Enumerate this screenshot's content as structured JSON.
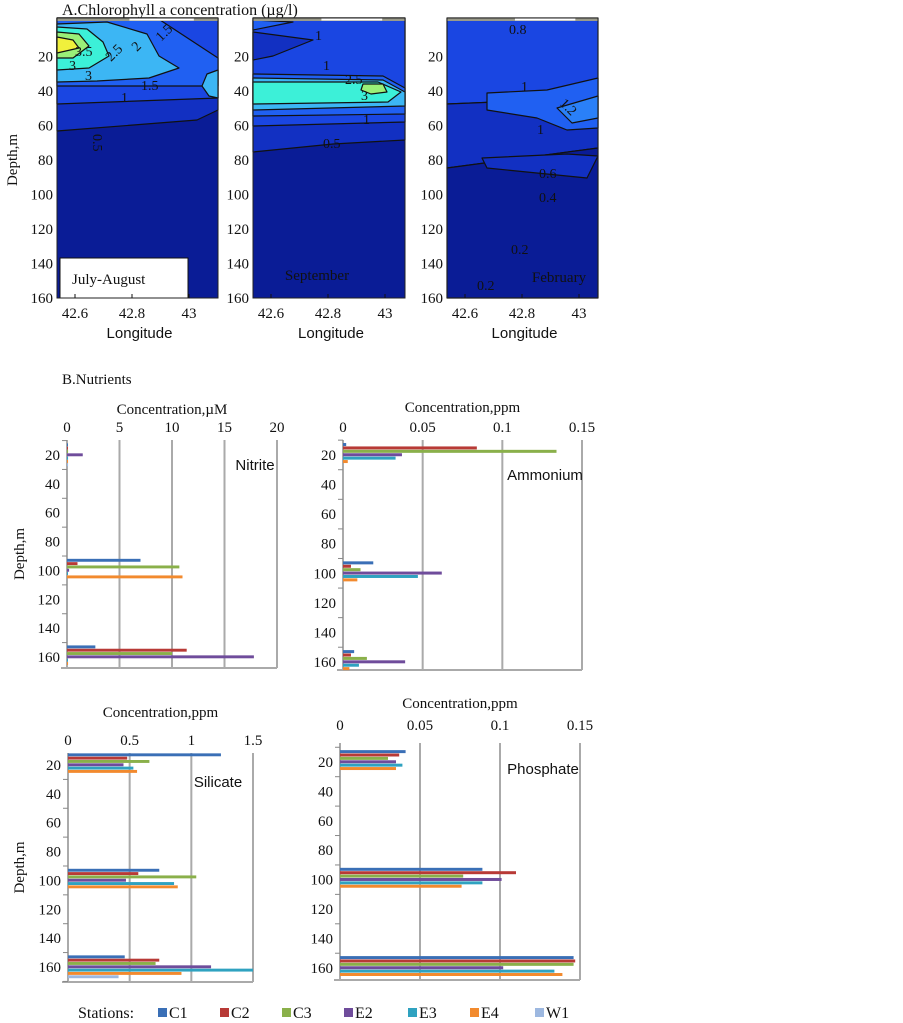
{
  "section_a_title": "A.Chlorophyll a concentration (µg/l)",
  "section_b_title": "B.Nutrients",
  "chart_data": [
    {
      "type": "heatmap",
      "id": "july-august",
      "panel_label": "July-August",
      "xlabel": "Longitude",
      "ylabel": "Depth,m",
      "xticks": [
        "42.6",
        "42.8",
        "43"
      ],
      "yticks": [
        "20",
        "40",
        "60",
        "80",
        "100",
        "120",
        "140",
        "160"
      ],
      "ylim": [
        0,
        160
      ],
      "xlim": [
        42.53,
        43.11
      ],
      "contour_labels": [
        "3.5",
        "3",
        "3",
        "2.5",
        "2",
        "1.5",
        "1.5",
        "1",
        "0.5"
      ]
    },
    {
      "type": "heatmap",
      "id": "september",
      "panel_label": "September",
      "xlabel": "Longitude",
      "ylabel": "",
      "xticks": [
        "42.6",
        "42.8",
        "43"
      ],
      "yticks": [
        "20",
        "40",
        "60",
        "80",
        "100",
        "120",
        "140",
        "160"
      ],
      "ylim": [
        0,
        160
      ],
      "xlim": [
        42.53,
        43.11
      ],
      "contour_labels": [
        "1",
        "1",
        "2.5",
        "3",
        "1",
        "0.5"
      ]
    },
    {
      "type": "heatmap",
      "id": "february",
      "panel_label": "February",
      "xlabel": "Longitude",
      "ylabel": "",
      "xticks": [
        "42.6",
        "42.8",
        "43"
      ],
      "yticks": [
        "20",
        "40",
        "60",
        "80",
        "100",
        "120",
        "140",
        "160"
      ],
      "ylim": [
        0,
        160
      ],
      "xlim": [
        42.53,
        43.11
      ],
      "contour_labels": [
        "0.8",
        "1",
        "1.2",
        "1",
        "0.6",
        "0.4",
        "0.2",
        "0.2"
      ]
    },
    {
      "type": "bar",
      "id": "nitrite",
      "label": "Nitrite",
      "xlabel": "Concentration,µM",
      "ylabel": "Depth,m",
      "xlim": [
        0,
        20
      ],
      "xticks": [
        "0",
        "5",
        "10",
        "15",
        "20"
      ],
      "yticks": [
        "20",
        "40",
        "60",
        "80",
        "100",
        "120",
        "140",
        "160"
      ],
      "depths": [
        20,
        100,
        160
      ],
      "series": [
        {
          "name": "C1",
          "values": [
            0,
            7.0,
            2.7
          ]
        },
        {
          "name": "C2",
          "values": [
            0,
            1.0,
            11.4
          ]
        },
        {
          "name": "C3",
          "values": [
            0.1,
            10.7,
            10.0
          ]
        },
        {
          "name": "E2",
          "values": [
            1.5,
            0.2,
            17.8
          ]
        },
        {
          "name": "E3",
          "values": [
            0.1,
            0,
            0
          ]
        },
        {
          "name": "E4",
          "values": [
            0.1,
            11.0,
            0.1
          ]
        },
        {
          "name": "W1",
          "values": [
            0.1,
            null,
            null
          ]
        }
      ]
    },
    {
      "type": "bar",
      "id": "ammonium",
      "label": "Ammonium",
      "xlabel": "Concentration,ppm",
      "ylabel": "",
      "xlim": [
        0,
        0.15
      ],
      "xticks": [
        "0",
        "0.05",
        "0.1",
        "0.15"
      ],
      "yticks": [
        "20",
        "40",
        "60",
        "80",
        "100",
        "120",
        "140",
        "160"
      ],
      "depths": [
        20,
        100,
        160
      ],
      "series": [
        {
          "name": "C1",
          "values": [
            0.002,
            0.019,
            0.007
          ]
        },
        {
          "name": "C2",
          "values": [
            0.084,
            0.005,
            0.005
          ]
        },
        {
          "name": "C3",
          "values": [
            0.134,
            0.011,
            0.015
          ]
        },
        {
          "name": "E2",
          "values": [
            0.037,
            0.062,
            0.039
          ]
        },
        {
          "name": "E3",
          "values": [
            0.033,
            0.047,
            0.01
          ]
        },
        {
          "name": "E4",
          "values": [
            0.003,
            0.009,
            0.004
          ]
        },
        {
          "name": "W1",
          "values": [
            null,
            null,
            null
          ]
        }
      ]
    },
    {
      "type": "bar",
      "id": "silicate",
      "label": "Silicate",
      "xlabel": "Concentration,ppm",
      "ylabel": "Depth,m",
      "xlim": [
        0,
        1.5
      ],
      "xticks": [
        "0",
        "0.5",
        "1",
        "1.5"
      ],
      "yticks": [
        "20",
        "40",
        "60",
        "80",
        "100",
        "120",
        "140",
        "160"
      ],
      "depths": [
        20,
        100,
        160
      ],
      "series": [
        {
          "name": "C1",
          "values": [
            1.24,
            0.74,
            0.46
          ]
        },
        {
          "name": "C2",
          "values": [
            0.48,
            0.57,
            0.74
          ]
        },
        {
          "name": "C3",
          "values": [
            0.66,
            1.04,
            0.71
          ]
        },
        {
          "name": "E2",
          "values": [
            0.45,
            0.47,
            1.16
          ]
        },
        {
          "name": "E3",
          "values": [
            0.53,
            0.86,
            1.5
          ]
        },
        {
          "name": "E4",
          "values": [
            0.56,
            0.89,
            0.92
          ]
        },
        {
          "name": "W1",
          "values": [
            null,
            null,
            0.41
          ]
        }
      ]
    },
    {
      "type": "bar",
      "id": "phosphate",
      "label": "Phosphate",
      "xlabel": "Concentration,ppm",
      "ylabel": "",
      "xlim": [
        0,
        0.15
      ],
      "xticks": [
        "0",
        "0.05",
        "0.1",
        "0.15"
      ],
      "yticks": [
        "20",
        "40",
        "60",
        "80",
        "100",
        "120",
        "140",
        "160"
      ],
      "depths": [
        20,
        100,
        160
      ],
      "series": [
        {
          "name": "C1",
          "values": [
            0.041,
            0.089,
            0.146
          ]
        },
        {
          "name": "C2",
          "values": [
            0.037,
            0.11,
            0.147
          ]
        },
        {
          "name": "C3",
          "values": [
            0.03,
            0.077,
            0.146
          ]
        },
        {
          "name": "E2",
          "values": [
            0.035,
            0.101,
            0.102
          ]
        },
        {
          "name": "E3",
          "values": [
            0.039,
            0.089,
            0.134
          ]
        },
        {
          "name": "E4",
          "values": [
            0.035,
            0.076,
            0.139
          ]
        },
        {
          "name": "W1",
          "values": [
            null,
            null,
            null
          ]
        }
      ]
    }
  ],
  "legend": {
    "title": "Stations:",
    "items": [
      {
        "name": "C1",
        "color": "#3a6fb6"
      },
      {
        "name": "C2",
        "color": "#b83a36"
      },
      {
        "name": "C3",
        "color": "#8ab04a"
      },
      {
        "name": "E2",
        "color": "#6f4c9b"
      },
      {
        "name": "E3",
        "color": "#2fa2c0"
      },
      {
        "name": "E4",
        "color": "#f28a2e"
      },
      {
        "name": "W1",
        "color": "#9db8e0"
      }
    ]
  }
}
